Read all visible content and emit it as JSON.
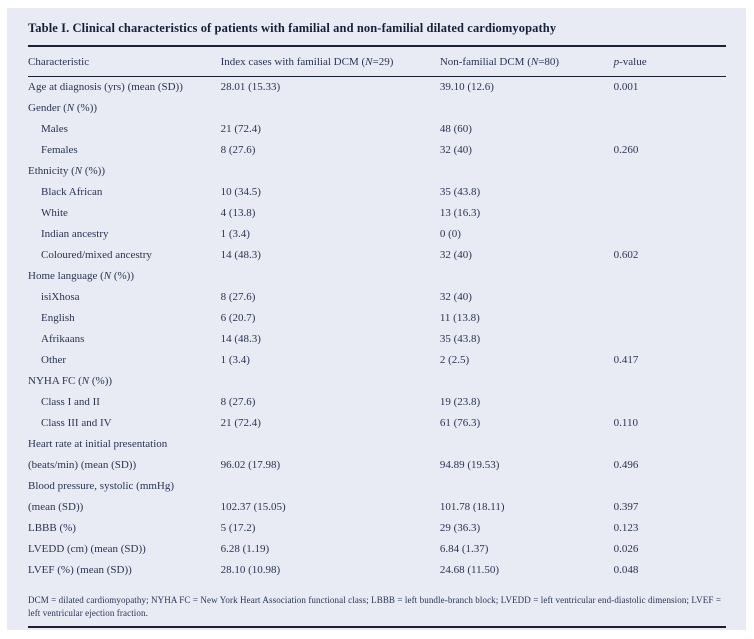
{
  "table": {
    "title": "Table I. Clinical characteristics of patients with familial and non-familial dilated cardiomyopathy",
    "columns": [
      {
        "label": "Characteristic"
      },
      {
        "label": "Index cases with familial DCM (*N*=29)"
      },
      {
        "label": "Non-familial DCM (*N*=80)"
      },
      {
        "label": "*p*-value"
      }
    ],
    "rows": [
      {
        "lines": [
          "Age at diagnosis (yrs) (mean (SD))"
        ],
        "indent": 0,
        "familial": "28.01 (15.33)",
        "nonfamilial": "39.10 (12.6)",
        "p": "0.001"
      },
      {
        "lines": [
          "Gender (*N* (%))"
        ],
        "indent": 0,
        "familial": "",
        "nonfamilial": "",
        "p": ""
      },
      {
        "lines": [
          "Males"
        ],
        "indent": 1,
        "familial": "21 (72.4)",
        "nonfamilial": "48 (60)",
        "p": ""
      },
      {
        "lines": [
          "Females"
        ],
        "indent": 1,
        "familial": "8 (27.6)",
        "nonfamilial": "32 (40)",
        "p": "0.260"
      },
      {
        "lines": [
          "Ethnicity (*N* (%))"
        ],
        "indent": 0,
        "familial": "",
        "nonfamilial": "",
        "p": ""
      },
      {
        "lines": [
          "Black African"
        ],
        "indent": 1,
        "familial": "10 (34.5)",
        "nonfamilial": "35 (43.8)",
        "p": ""
      },
      {
        "lines": [
          "White"
        ],
        "indent": 1,
        "familial": "4 (13.8)",
        "nonfamilial": "13 (16.3)",
        "p": ""
      },
      {
        "lines": [
          "Indian ancestry"
        ],
        "indent": 1,
        "familial": "1 (3.4)",
        "nonfamilial": "0 (0)",
        "p": ""
      },
      {
        "lines": [
          "Coloured/mixed ancestry"
        ],
        "indent": 1,
        "familial": "14 (48.3)",
        "nonfamilial": "32 (40)",
        "p": "0.602"
      },
      {
        "lines": [
          "Home language (*N* (%))"
        ],
        "indent": 0,
        "familial": "",
        "nonfamilial": "",
        "p": ""
      },
      {
        "lines": [
          "isiXhosa"
        ],
        "indent": 1,
        "familial": "8 (27.6)",
        "nonfamilial": "32 (40)",
        "p": ""
      },
      {
        "lines": [
          "English"
        ],
        "indent": 1,
        "familial": "6 (20.7)",
        "nonfamilial": "11 (13.8)",
        "p": ""
      },
      {
        "lines": [
          "Afrikaans"
        ],
        "indent": 1,
        "familial": "14 (48.3)",
        "nonfamilial": "35 (43.8)",
        "p": ""
      },
      {
        "lines": [
          "Other"
        ],
        "indent": 1,
        "familial": "1 (3.4)",
        "nonfamilial": "2 (2.5)",
        "p": "0.417"
      },
      {
        "lines": [
          "NYHA FC (*N* (%))"
        ],
        "indent": 0,
        "familial": "",
        "nonfamilial": "",
        "p": ""
      },
      {
        "lines": [
          "Class I and II"
        ],
        "indent": 1,
        "familial": "8 (27.6)",
        "nonfamilial": "19 (23.8)",
        "p": ""
      },
      {
        "lines": [
          "Class III and IV"
        ],
        "indent": 1,
        "familial": "21 (72.4)",
        "nonfamilial": "61 (76.3)",
        "p": "0.110"
      },
      {
        "lines": [
          "Heart rate at initial presentation",
          "(beats/min) (mean (SD))"
        ],
        "indent": 0,
        "familial": "96.02 (17.98)",
        "nonfamilial": "94.89 (19.53)",
        "p": "0.496"
      },
      {
        "lines": [
          "Blood pressure, systolic (mmHg)",
          "(mean (SD))"
        ],
        "indent": 0,
        "familial": "102.37 (15.05)",
        "nonfamilial": "101.78 (18.11)",
        "p": "0.397"
      },
      {
        "lines": [
          "LBBB (%)"
        ],
        "indent": 0,
        "familial": "5 (17.2)",
        "nonfamilial": "29 (36.3)",
        "p": "0.123"
      },
      {
        "lines": [
          "LVEDD (cm) (mean (SD))"
        ],
        "indent": 0,
        "familial": "6.28 (1.19)",
        "nonfamilial": "6.84 (1.37)",
        "p": "0.026"
      },
      {
        "lines": [
          "LVEF (%) (mean (SD))"
        ],
        "indent": 0,
        "familial": "28.10 (10.98)",
        "nonfamilial": "24.68 (11.50)",
        "p": "0.048"
      }
    ],
    "footnote": "DCM = dilated cardiomyopathy; NYHA FC = New York Heart Association functional class; LBBB = left bundle-branch block; LVEDD = left ventricular end-diastolic dimension; LVEF = left ventricular ejection fraction.",
    "colors": {
      "panel_bg": "#e8ebf4",
      "ink": "#2a3353",
      "title_ink": "#17203a",
      "rule": "#1a2134"
    }
  }
}
